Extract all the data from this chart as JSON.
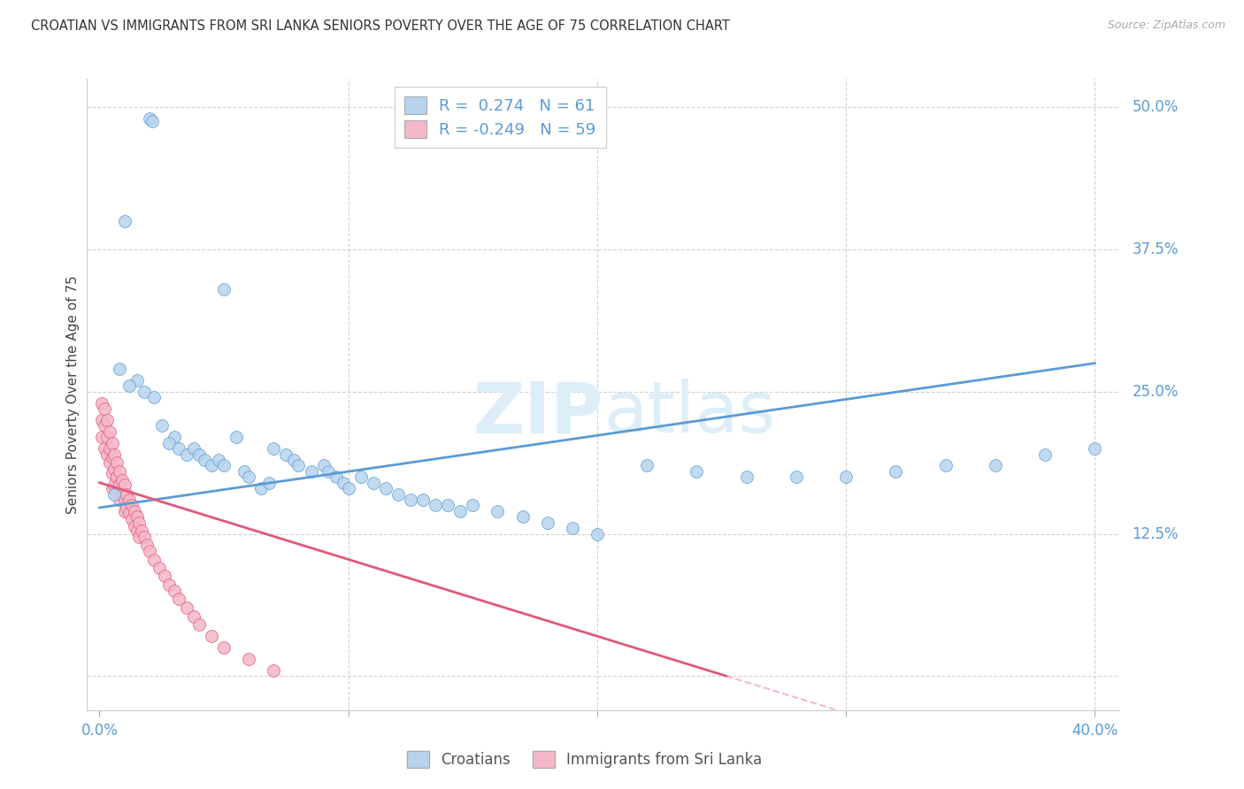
{
  "title": "CROATIAN VS IMMIGRANTS FROM SRI LANKA SENIORS POVERTY OVER THE AGE OF 75 CORRELATION CHART",
  "source": "Source: ZipAtlas.com",
  "ylabel": "Seniors Poverty Over the Age of 75",
  "blue_R": 0.274,
  "blue_N": 61,
  "pink_R": -0.249,
  "pink_N": 59,
  "legend_label_blue": "Croatians",
  "legend_label_pink": "Immigrants from Sri Lanka",
  "blue_fill_color": "#b8d4ed",
  "pink_fill_color": "#f5b8c8",
  "blue_line_color": "#5b9bd5",
  "pink_line_color": "#e05878",
  "axis_label_color": "#5b9bd5",
  "watermark_color": "#ddeef8",
  "background_color": "#ffffff",
  "grid_color": "#cccccc",
  "title_color": "#333333",
  "blue_scatter_x": [
    0.02,
    0.021,
    0.01,
    0.05,
    0.008,
    0.015,
    0.012,
    0.018,
    0.022,
    0.025,
    0.03,
    0.028,
    0.032,
    0.035,
    0.038,
    0.04,
    0.042,
    0.045,
    0.048,
    0.05,
    0.055,
    0.058,
    0.06,
    0.065,
    0.068,
    0.07,
    0.075,
    0.078,
    0.08,
    0.085,
    0.09,
    0.092,
    0.095,
    0.098,
    0.1,
    0.105,
    0.11,
    0.115,
    0.12,
    0.125,
    0.13,
    0.135,
    0.14,
    0.145,
    0.15,
    0.16,
    0.17,
    0.18,
    0.19,
    0.2,
    0.22,
    0.24,
    0.26,
    0.28,
    0.3,
    0.32,
    0.34,
    0.36,
    0.38,
    0.4,
    0.006
  ],
  "blue_scatter_y": [
    0.49,
    0.488,
    0.4,
    0.34,
    0.27,
    0.26,
    0.255,
    0.25,
    0.245,
    0.22,
    0.21,
    0.205,
    0.2,
    0.195,
    0.2,
    0.195,
    0.19,
    0.185,
    0.19,
    0.185,
    0.21,
    0.18,
    0.175,
    0.165,
    0.17,
    0.2,
    0.195,
    0.19,
    0.185,
    0.18,
    0.185,
    0.18,
    0.175,
    0.17,
    0.165,
    0.175,
    0.17,
    0.165,
    0.16,
    0.155,
    0.155,
    0.15,
    0.15,
    0.145,
    0.15,
    0.145,
    0.14,
    0.135,
    0.13,
    0.125,
    0.185,
    0.18,
    0.175,
    0.175,
    0.175,
    0.18,
    0.185,
    0.185,
    0.195,
    0.2,
    0.16
  ],
  "pink_scatter_x": [
    0.001,
    0.001,
    0.001,
    0.002,
    0.002,
    0.002,
    0.003,
    0.003,
    0.003,
    0.004,
    0.004,
    0.004,
    0.005,
    0.005,
    0.005,
    0.005,
    0.006,
    0.006,
    0.006,
    0.007,
    0.007,
    0.007,
    0.008,
    0.008,
    0.008,
    0.009,
    0.009,
    0.01,
    0.01,
    0.01,
    0.011,
    0.011,
    0.012,
    0.012,
    0.013,
    0.013,
    0.014,
    0.014,
    0.015,
    0.015,
    0.016,
    0.016,
    0.017,
    0.018,
    0.019,
    0.02,
    0.022,
    0.024,
    0.026,
    0.028,
    0.03,
    0.032,
    0.035,
    0.038,
    0.04,
    0.045,
    0.05,
    0.06,
    0.07
  ],
  "pink_scatter_y": [
    0.24,
    0.225,
    0.21,
    0.235,
    0.22,
    0.2,
    0.225,
    0.21,
    0.195,
    0.215,
    0.2,
    0.188,
    0.205,
    0.192,
    0.178,
    0.165,
    0.195,
    0.182,
    0.168,
    0.188,
    0.175,
    0.162,
    0.18,
    0.168,
    0.155,
    0.172,
    0.16,
    0.168,
    0.156,
    0.145,
    0.16,
    0.148,
    0.155,
    0.143,
    0.15,
    0.138,
    0.145,
    0.132,
    0.14,
    0.128,
    0.135,
    0.122,
    0.128,
    0.122,
    0.115,
    0.11,
    0.102,
    0.095,
    0.088,
    0.08,
    0.075,
    0.068,
    0.06,
    0.052,
    0.045,
    0.035,
    0.025,
    0.015,
    0.005
  ]
}
